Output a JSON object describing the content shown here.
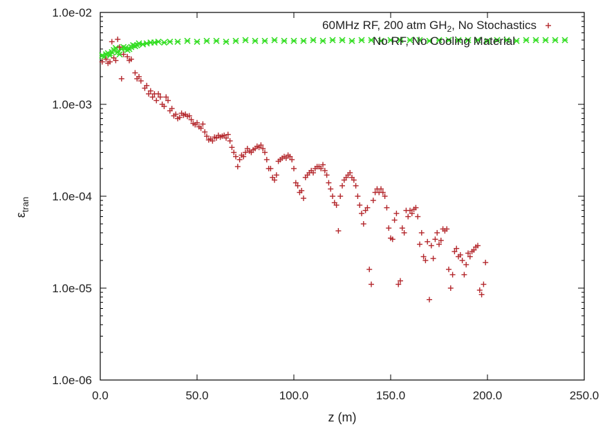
{
  "chart_data": {
    "type": "scatter",
    "title": "",
    "xlabel": "z (m)",
    "ylabel": {
      "main": "ε",
      "sub": "tran"
    },
    "xlim": [
      0,
      250
    ],
    "ylim": [
      1e-06,
      0.01
    ],
    "yscale": "log",
    "grid": false,
    "legend_position": "top-right",
    "x_ticks": [
      {
        "value": 0,
        "label": "0.0"
      },
      {
        "value": 50,
        "label": "50.0"
      },
      {
        "value": 100,
        "label": "100.0"
      },
      {
        "value": 150,
        "label": "150.0"
      },
      {
        "value": 200,
        "label": "200.0"
      },
      {
        "value": 250,
        "label": "250.0"
      }
    ],
    "y_ticks": [
      {
        "value": 1e-06,
        "label": "1.0e-06"
      },
      {
        "value": 1e-05,
        "label": "1.0e-05"
      },
      {
        "value": 0.0001,
        "label": "1.0e-04"
      },
      {
        "value": 0.001,
        "label": "1.0e-03"
      },
      {
        "value": 0.01,
        "label": "1.0e-02"
      }
    ],
    "series": [
      {
        "name": "60MHz RF, 200 atm GH2, No Stochastics",
        "legend_parts": {
          "before": "60MHz RF, 200 atm GH",
          "sub": "2",
          "after": ", No Stochastics"
        },
        "marker": "plus",
        "color": "#b3262b",
        "points": [
          [
            1,
            0.0029
          ],
          [
            3,
            0.0031
          ],
          [
            4,
            0.0028
          ],
          [
            5,
            0.0029
          ],
          [
            6,
            0.0048
          ],
          [
            7,
            0.0032
          ],
          [
            8,
            0.003
          ],
          [
            9,
            0.0051
          ],
          [
            10,
            0.0042
          ],
          [
            11,
            0.0019
          ],
          [
            12,
            0.0035
          ],
          [
            14,
            0.0033
          ],
          [
            15,
            0.003
          ],
          [
            16,
            0.0031
          ],
          [
            18,
            0.0022
          ],
          [
            19,
            0.0019
          ],
          [
            20,
            0.002
          ],
          [
            21,
            0.0018
          ],
          [
            23,
            0.0015
          ],
          [
            24,
            0.0016
          ],
          [
            25,
            0.0013
          ],
          [
            26,
            0.0014
          ],
          [
            27,
            0.0012
          ],
          [
            28,
            0.0013
          ],
          [
            29,
            0.0011
          ],
          [
            30,
            0.0013
          ],
          [
            31,
            0.0012
          ],
          [
            32,
            0.001
          ],
          [
            33,
            0.00095
          ],
          [
            34,
            0.0012
          ],
          [
            35,
            0.0011
          ],
          [
            36,
            0.00085
          ],
          [
            37,
            0.0009
          ],
          [
            38,
            0.00075
          ],
          [
            39,
            0.00078
          ],
          [
            40,
            0.0007
          ],
          [
            41,
            0.00072
          ],
          [
            42,
            0.0008
          ],
          [
            43,
            0.00076
          ],
          [
            44,
            0.00078
          ],
          [
            45,
            0.00074
          ],
          [
            46,
            0.00075
          ],
          [
            47,
            0.00068
          ],
          [
            48,
            0.00062
          ],
          [
            49,
            0.0006
          ],
          [
            50,
            0.00063
          ],
          [
            51,
            0.00057
          ],
          [
            52,
            0.00055
          ],
          [
            53,
            0.00061
          ],
          [
            54,
            0.0005
          ],
          [
            55,
            0.00045
          ],
          [
            56,
            0.00041
          ],
          [
            57,
            0.00042
          ],
          [
            58,
            0.0004
          ],
          [
            59,
            0.00044
          ],
          [
            60,
            0.00043
          ],
          [
            61,
            0.00046
          ],
          [
            62,
            0.00044
          ],
          [
            63,
            0.00045
          ],
          [
            64,
            0.00046
          ],
          [
            65,
            0.00043
          ],
          [
            66,
            0.00047
          ],
          [
            67,
            0.0004
          ],
          [
            68,
            0.00034
          ],
          [
            69,
            0.0003
          ],
          [
            70,
            0.00027
          ],
          [
            71,
            0.00021
          ],
          [
            72,
            0.00025
          ],
          [
            73,
            0.00028
          ],
          [
            74,
            0.00027
          ],
          [
            75,
            0.0003
          ],
          [
            76,
            0.00033
          ],
          [
            77,
            0.00031
          ],
          [
            78,
            0.0003
          ],
          [
            79,
            0.00032
          ],
          [
            80,
            0.00033
          ],
          [
            81,
            0.00035
          ],
          [
            82,
            0.00034
          ],
          [
            83,
            0.00036
          ],
          [
            84,
            0.00033
          ],
          [
            85,
            0.0003
          ],
          [
            86,
            0.00025
          ],
          [
            87,
            0.0002
          ],
          [
            88,
            0.0002
          ],
          [
            89,
            0.00016
          ],
          [
            90,
            0.00015
          ],
          [
            91,
            0.00017
          ],
          [
            92,
            0.00024
          ],
          [
            93,
            0.00025
          ],
          [
            94,
            0.00026
          ],
          [
            95,
            0.00027
          ],
          [
            96,
            0.00026
          ],
          [
            97,
            0.00028
          ],
          [
            98,
            0.00027
          ],
          [
            99,
            0.00025
          ],
          [
            100,
            0.0002
          ],
          [
            101,
            0.00014
          ],
          [
            102,
            0.00013
          ],
          [
            103,
            0.00011
          ],
          [
            104,
            0.000115
          ],
          [
            105,
            9.5e-05
          ],
          [
            106,
            0.00016
          ],
          [
            107,
            0.00017
          ],
          [
            108,
            0.00018
          ],
          [
            109,
            0.00019
          ],
          [
            110,
            0.00018
          ],
          [
            111,
            0.0002
          ],
          [
            112,
            0.00021
          ],
          [
            113,
            0.00021
          ],
          [
            114,
            0.0002
          ],
          [
            115,
            0.00022
          ],
          [
            116,
            0.00019
          ],
          [
            117,
            0.00017
          ],
          [
            118,
            0.00014
          ],
          [
            119,
            0.00012
          ],
          [
            120,
            0.0001
          ],
          [
            121,
            8.5e-05
          ],
          [
            122,
            8e-05
          ],
          [
            123,
            4.2e-05
          ],
          [
            124,
            0.0001
          ],
          [
            125,
            0.00013
          ],
          [
            126,
            0.00015
          ],
          [
            127,
            0.00016
          ],
          [
            128,
            0.00017
          ],
          [
            129,
            0.00018
          ],
          [
            130,
            0.00016
          ],
          [
            131,
            0.00015
          ],
          [
            132,
            0.00013
          ],
          [
            133,
            0.0001
          ],
          [
            134,
            8e-05
          ],
          [
            135,
            6.5e-05
          ],
          [
            136,
            5e-05
          ],
          [
            137,
            7e-05
          ],
          [
            138,
            7.5e-05
          ],
          [
            139,
            1.6e-05
          ],
          [
            140,
            1.1e-05
          ],
          [
            141,
            9e-05
          ],
          [
            142,
            0.00011
          ],
          [
            143,
            0.00012
          ],
          [
            144,
            0.00011
          ],
          [
            145,
            0.00012
          ],
          [
            146,
            0.00011
          ],
          [
            147,
            0.0001
          ],
          [
            148,
            7.5e-05
          ],
          [
            149,
            4.5e-05
          ],
          [
            150,
            3.5e-05
          ],
          [
            151,
            3.4e-05
          ],
          [
            152,
            5.5e-05
          ],
          [
            153,
            6.5e-05
          ],
          [
            154,
            1.1e-05
          ],
          [
            155,
            1.2e-05
          ],
          [
            156,
            4.5e-05
          ],
          [
            157,
            4e-05
          ],
          [
            158,
            7e-05
          ],
          [
            159,
            6e-05
          ],
          [
            160,
            7e-05
          ],
          [
            161,
            6.5e-05
          ],
          [
            162,
            7.2e-05
          ],
          [
            163,
            7.5e-05
          ],
          [
            164,
            6e-05
          ],
          [
            165,
            3e-05
          ],
          [
            166,
            4e-05
          ],
          [
            167,
            2.2e-05
          ],
          [
            168,
            2e-05
          ],
          [
            169,
            3.2e-05
          ],
          [
            170,
            7.5e-06
          ],
          [
            171,
            2.9e-05
          ],
          [
            172,
            2.1e-05
          ],
          [
            173,
            3.4e-05
          ],
          [
            174,
            4e-05
          ],
          [
            175,
            3e-05
          ],
          [
            176,
            3.3e-05
          ],
          [
            177,
            4.4e-05
          ],
          [
            178,
            4.2e-05
          ],
          [
            179,
            4.4e-05
          ],
          [
            180,
            1.6e-05
          ],
          [
            181,
            1e-05
          ],
          [
            182,
            1.4e-05
          ],
          [
            183,
            2.5e-05
          ],
          [
            184,
            2.7e-05
          ],
          [
            185,
            2.2e-05
          ],
          [
            186,
            2.3e-05
          ],
          [
            187,
            2e-05
          ],
          [
            188,
            1.4e-05
          ],
          [
            189,
            1.8e-05
          ],
          [
            190,
            2.4e-05
          ],
          [
            191,
            2.2e-05
          ],
          [
            192,
            2.5e-05
          ],
          [
            193,
            2.6e-05
          ],
          [
            194,
            2.8e-05
          ],
          [
            195,
            2.9e-05
          ],
          [
            196,
            9.5e-06
          ],
          [
            197,
            8.5e-06
          ],
          [
            198,
            1.1e-05
          ],
          [
            199,
            1.9e-05
          ]
        ]
      },
      {
        "name": "No RF, No Cooling Material",
        "marker": "x",
        "color": "#33dd22",
        "points": [
          [
            1,
            0.0034
          ],
          [
            2,
            0.0033
          ],
          [
            3,
            0.0035
          ],
          [
            4,
            0.0036
          ],
          [
            5,
            0.0034
          ],
          [
            6,
            0.0037
          ],
          [
            7,
            0.0039
          ],
          [
            8,
            0.0041
          ],
          [
            9,
            0.0037
          ],
          [
            10,
            0.0035
          ],
          [
            11,
            0.004
          ],
          [
            12,
            0.0042
          ],
          [
            13,
            0.0041
          ],
          [
            14,
            0.0039
          ],
          [
            15,
            0.004
          ],
          [
            16,
            0.0042
          ],
          [
            17,
            0.0044
          ],
          [
            18,
            0.0043
          ],
          [
            19,
            0.0044
          ],
          [
            20,
            0.0046
          ],
          [
            22,
            0.0045
          ],
          [
            24,
            0.0046
          ],
          [
            26,
            0.0047
          ],
          [
            28,
            0.0047
          ],
          [
            30,
            0.0048
          ],
          [
            33,
            0.0047
          ],
          [
            36,
            0.0048
          ],
          [
            40,
            0.0048
          ],
          [
            45,
            0.0049
          ],
          [
            50,
            0.0048
          ],
          [
            55,
            0.0049
          ],
          [
            60,
            0.0049
          ],
          [
            65,
            0.0048
          ],
          [
            70,
            0.0049
          ],
          [
            75,
            0.005
          ],
          [
            80,
            0.0049
          ],
          [
            85,
            0.0049
          ],
          [
            90,
            0.005
          ],
          [
            95,
            0.0049
          ],
          [
            100,
            0.0049
          ],
          [
            105,
            0.0049
          ],
          [
            110,
            0.005
          ],
          [
            115,
            0.0049
          ],
          [
            120,
            0.005
          ],
          [
            125,
            0.005
          ],
          [
            130,
            0.0049
          ],
          [
            135,
            0.005
          ],
          [
            140,
            0.005
          ],
          [
            145,
            0.0049
          ],
          [
            150,
            0.005
          ],
          [
            155,
            0.005
          ],
          [
            160,
            0.005
          ],
          [
            165,
            0.005
          ],
          [
            170,
            0.0049
          ],
          [
            175,
            0.005
          ],
          [
            180,
            0.005
          ],
          [
            185,
            0.005
          ],
          [
            190,
            0.005
          ],
          [
            195,
            0.005
          ],
          [
            200,
            0.0049
          ],
          [
            205,
            0.005
          ],
          [
            210,
            0.005
          ],
          [
            215,
            0.0049
          ],
          [
            220,
            0.005
          ],
          [
            225,
            0.005
          ],
          [
            230,
            0.005
          ],
          [
            235,
            0.005
          ],
          [
            240,
            0.005
          ]
        ]
      }
    ]
  }
}
